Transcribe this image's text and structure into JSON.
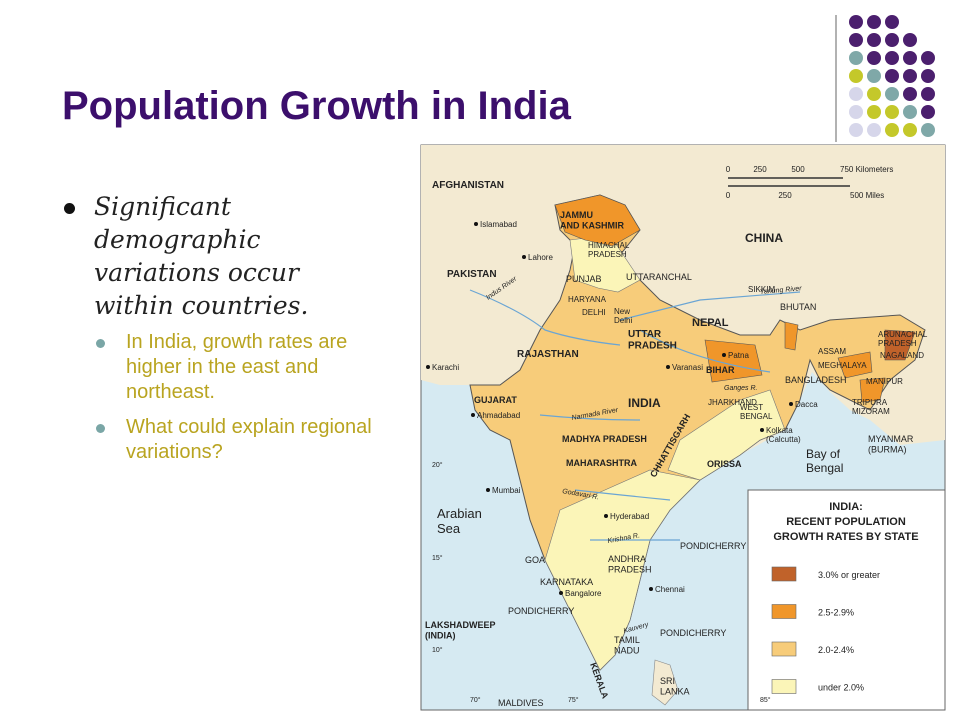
{
  "title": "Population Growth in India",
  "bullets": [
    {
      "text": "Significant demographic variations occur within countries.",
      "sub": [
        "In India, growth rates are higher in the east and northeast.",
        "What could explain regional variations?"
      ]
    }
  ],
  "map": {
    "labels": [
      "AFGHANISTAN",
      "PAKISTAN",
      "CHINA",
      "NEPAL",
      "BHUTAN",
      "BANGLADESH",
      [
        "MYANMAR",
        "(BURMA)"
      ],
      [
        "SRI",
        "LANKA"
      ],
      "MALDIVES",
      [
        "JAMMU",
        "AND KASHMIR"
      ],
      [
        "HIMACHAL",
        "PRADESH"
      ],
      "PUNJAB",
      "HARYANA",
      "DELHI",
      [
        "New",
        "Delhi"
      ],
      "UTTARANCHAL",
      "RAJASTHAN",
      [
        "UTTAR",
        "PRADESH"
      ],
      "BIHAR",
      "INDIA",
      "GUJARAT",
      "MADHYA PRADESH",
      "CHHATTISGARH",
      "JHARKHAND",
      [
        "WEST",
        "BENGAL"
      ],
      "ORISSA",
      "MAHARASHTRA",
      "GOA",
      "KARNATAKA",
      [
        "ANDHRA",
        "PRADESH"
      ],
      [
        "TAMIL",
        "NADU"
      ],
      "KERALA",
      "PONDICHERRY",
      "PONDICHERRY",
      "PONDICHERRY",
      [
        "LAKSHADWEEP",
        "(INDIA)"
      ],
      "SIKKIM",
      [
        "ARUNACHAL",
        "PRADESH"
      ],
      "ASSAM",
      "MEGHALAYA",
      "NAGALAND",
      "MANIPUR",
      [
        "TRIPURA",
        "MIZORAM"
      ],
      [
        "Arabian",
        "Sea"
      ],
      [
        "Bay of",
        "Bengal"
      ]
    ],
    "cities": [
      "Islamabad",
      "Lahore",
      "Karachi",
      "Ahmadabad",
      "Mumbai",
      "Hyderabad",
      "Bangalore",
      "Chennai",
      [
        "Kolkata",
        "(Calcutta)"
      ],
      "Patna",
      "Varanasi",
      "Dacca"
    ],
    "rivers": [
      "Indus River",
      "Yarlung River",
      "Ganges R.",
      "Narmada River",
      "Godavari R.",
      "Krishna R.",
      "Kauvery"
    ],
    "graticule": [
      "20°",
      "15°",
      "10°",
      "70°",
      "75°",
      "85°"
    ],
    "scale": {
      "kilometers": [
        "0",
        "250",
        "500",
        "750 Kilometers"
      ],
      "miles": [
        "0",
        "250",
        "500 Miles"
      ]
    },
    "legend": {
      "title": [
        "INDIA:",
        "RECENT POPULATION",
        "GROWTH RATES BY STATE"
      ],
      "items": [
        {
          "label": "3.0% or greater",
          "color": "#c0622a"
        },
        {
          "label": "2.5-2.9%",
          "color": "#f0962a"
        },
        {
          "label": "2.0-2.4%",
          "color": "#f7cc7a"
        },
        {
          "label": "under 2.0%",
          "color": "#fbf5b8"
        }
      ]
    }
  }
}
